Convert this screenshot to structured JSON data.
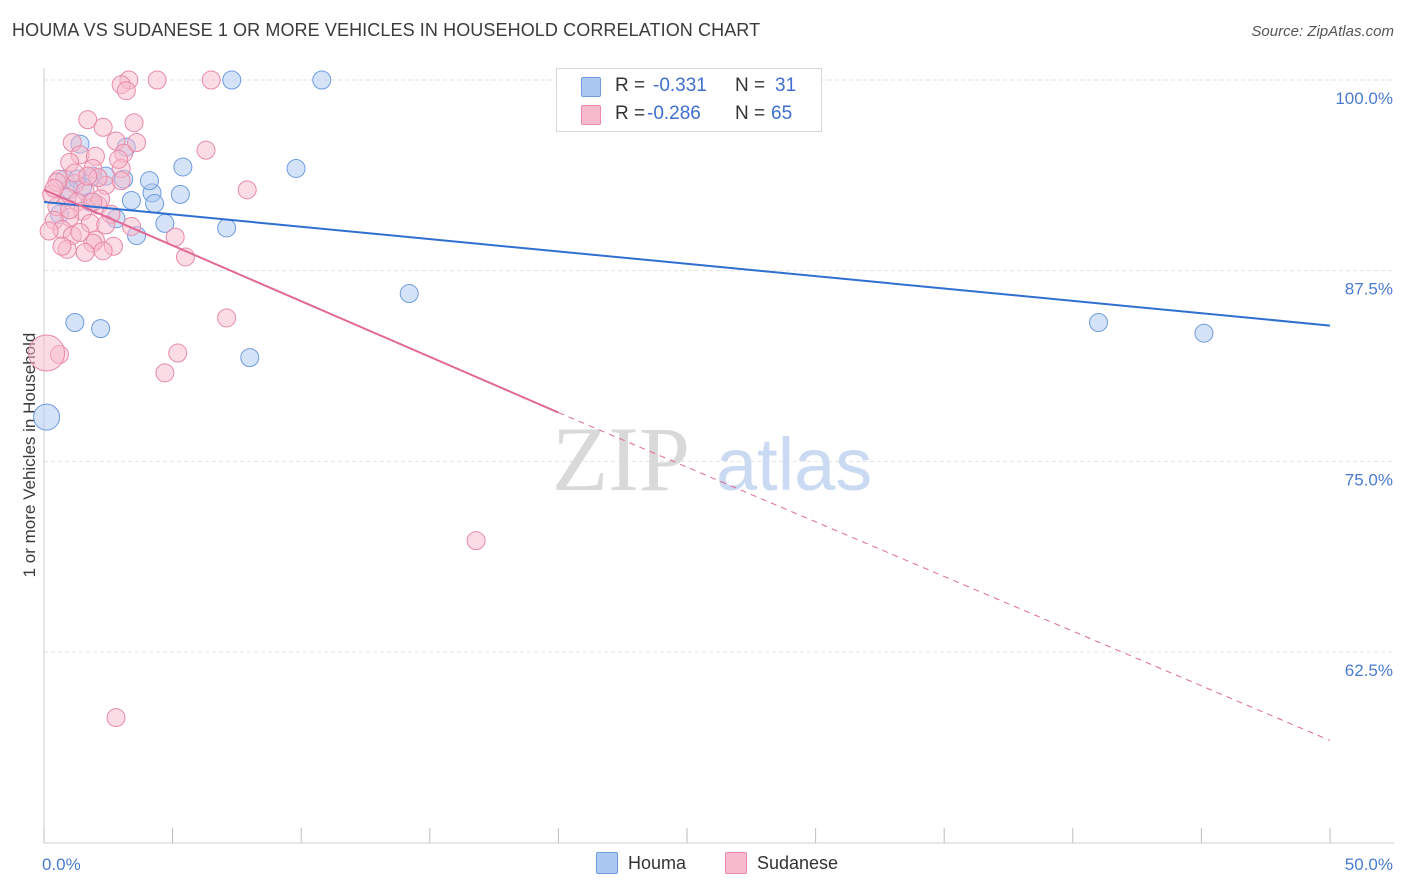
{
  "header": {
    "title": "HOUMA VS SUDANESE 1 OR MORE VEHICLES IN HOUSEHOLD CORRELATION CHART",
    "source_label": "Source:",
    "source_value": "ZipAtlas.com"
  },
  "legend": {
    "houma": {
      "r_label": "R =",
      "r_value": "-0.331",
      "n_label": "N =",
      "n_value": "31"
    },
    "sudanese": {
      "r_label": "R =",
      "r_value": "-0.286",
      "n_label": "N =",
      "n_value": "65"
    }
  },
  "bottom_legend": {
    "houma_label": "Houma",
    "sudanese_label": "Sudanese"
  },
  "watermark": {
    "zip": "ZIP",
    "atlas": "atlas"
  },
  "colors": {
    "houma_fill": "#aac8f0",
    "houma_stroke": "#6f9be0",
    "houma_line": "#2f6fcf",
    "sudanese_fill": "#f7b9cc",
    "sudanese_stroke": "#e88aa8",
    "sudanese_line": "#e06a95",
    "grid": "#e3e3e3",
    "axis_label": "#4a7bd0"
  },
  "chart_data": {
    "type": "scatter",
    "title": "HOUMA VS SUDANESE 1 OR MORE VEHICLES IN HOUSEHOLD CORRELATION CHART",
    "xlabel": "",
    "ylabel": "1 or more Vehicles in Household",
    "xlim": [
      0,
      50
    ],
    "ylim": [
      50,
      100
    ],
    "x_tick_labels": [
      "0.0%",
      "50.0%"
    ],
    "y_ticks": [
      {
        "value": 100,
        "label": "100.0%"
      },
      {
        "value": 87.5,
        "label": "87.5%"
      },
      {
        "value": 75,
        "label": "75.0%"
      },
      {
        "value": 62.5,
        "label": "62.5%"
      }
    ],
    "series": [
      {
        "name": "Houma",
        "points": [
          [
            7.3,
            100.0
          ],
          [
            10.8,
            100.0
          ],
          [
            1.4,
            95.8
          ],
          [
            3.2,
            95.6
          ],
          [
            5.4,
            94.3
          ],
          [
            9.8,
            94.2
          ],
          [
            0.8,
            93.5
          ],
          [
            1.3,
            93.5
          ],
          [
            1.9,
            93.7
          ],
          [
            3.1,
            93.5
          ],
          [
            1.5,
            93.0
          ],
          [
            4.2,
            92.6
          ],
          [
            5.3,
            92.5
          ],
          [
            3.4,
            92.1
          ],
          [
            4.3,
            91.9
          ],
          [
            1.8,
            92.0
          ],
          [
            2.8,
            90.9
          ],
          [
            4.7,
            90.6
          ],
          [
            7.1,
            90.3
          ],
          [
            3.6,
            89.8
          ],
          [
            14.2,
            86.0
          ],
          [
            1.2,
            84.1
          ],
          [
            2.2,
            83.7
          ],
          [
            8.0,
            81.8
          ],
          [
            41.0,
            84.1
          ],
          [
            45.1,
            83.4
          ],
          [
            0.1,
            77.9
          ],
          [
            2.4,
            93.7
          ],
          [
            0.6,
            91.2
          ],
          [
            1.0,
            92.8
          ],
          [
            4.1,
            93.4
          ]
        ],
        "sizes": [
          9,
          9,
          9,
          9,
          9,
          9,
          9,
          9,
          9,
          9,
          9,
          9,
          9,
          9,
          9,
          9,
          9,
          9,
          9,
          9,
          9,
          9,
          9,
          9,
          9,
          9,
          13,
          9,
          9,
          9,
          9
        ],
        "trend": {
          "x": [
            0,
            50
          ],
          "y": [
            92.0,
            83.9
          ]
        }
      },
      {
        "name": "Sudanese",
        "points": [
          [
            3.3,
            100.0
          ],
          [
            4.4,
            100.0
          ],
          [
            6.5,
            100.0
          ],
          [
            3.0,
            99.7
          ],
          [
            3.2,
            99.3
          ],
          [
            1.7,
            97.4
          ],
          [
            3.5,
            97.2
          ],
          [
            2.3,
            96.9
          ],
          [
            1.1,
            95.9
          ],
          [
            2.8,
            96.0
          ],
          [
            6.3,
            95.4
          ],
          [
            1.4,
            95.1
          ],
          [
            2.0,
            95.0
          ],
          [
            3.1,
            95.2
          ],
          [
            1.0,
            94.6
          ],
          [
            1.9,
            94.2
          ],
          [
            3.0,
            94.2
          ],
          [
            0.6,
            93.5
          ],
          [
            1.2,
            93.2
          ],
          [
            2.4,
            93.1
          ],
          [
            1.6,
            92.7
          ],
          [
            0.9,
            92.3
          ],
          [
            1.3,
            92.0
          ],
          [
            2.1,
            91.8
          ],
          [
            0.5,
            91.7
          ],
          [
            1.5,
            91.4
          ],
          [
            2.6,
            91.2
          ],
          [
            1.0,
            91.0
          ],
          [
            0.4,
            90.8
          ],
          [
            1.8,
            90.6
          ],
          [
            2.4,
            90.5
          ],
          [
            0.7,
            90.2
          ],
          [
            1.1,
            89.8
          ],
          [
            2.0,
            89.5
          ],
          [
            3.4,
            90.4
          ],
          [
            5.1,
            89.7
          ],
          [
            1.9,
            89.3
          ],
          [
            2.7,
            89.1
          ],
          [
            0.9,
            88.9
          ],
          [
            1.6,
            88.7
          ],
          [
            2.3,
            88.8
          ],
          [
            5.5,
            88.4
          ],
          [
            0.3,
            92.5
          ],
          [
            1.2,
            93.9
          ],
          [
            2.1,
            93.6
          ],
          [
            0.7,
            89.1
          ],
          [
            1.4,
            90.0
          ],
          [
            0.2,
            90.1
          ],
          [
            2.9,
            94.8
          ],
          [
            3.6,
            95.9
          ],
          [
            7.9,
            92.8
          ],
          [
            1.0,
            91.5
          ],
          [
            2.2,
            92.2
          ],
          [
            0.5,
            93.3
          ],
          [
            1.7,
            93.7
          ],
          [
            7.1,
            84.4
          ],
          [
            5.2,
            82.1
          ],
          [
            4.7,
            80.8
          ],
          [
            0.6,
            82.0
          ],
          [
            0.1,
            82.1
          ],
          [
            16.8,
            69.8
          ],
          [
            2.8,
            58.2
          ],
          [
            3.0,
            93.4
          ],
          [
            0.4,
            92.9
          ],
          [
            1.9,
            92.0
          ]
        ],
        "sizes": [
          9,
          9,
          9,
          9,
          9,
          9,
          9,
          9,
          9,
          9,
          9,
          9,
          9,
          9,
          9,
          9,
          9,
          9,
          9,
          9,
          9,
          9,
          9,
          9,
          9,
          9,
          9,
          9,
          9,
          9,
          9,
          9,
          9,
          9,
          9,
          9,
          9,
          9,
          9,
          9,
          9,
          9,
          9,
          9,
          9,
          9,
          9,
          9,
          9,
          9,
          9,
          9,
          9,
          9,
          9,
          9,
          9,
          9,
          9,
          18,
          9,
          9,
          9,
          9,
          9
        ],
        "trend": {
          "x": [
            0,
            20
          ],
          "y": [
            92.8,
            78.2
          ]
        },
        "trend_dashed": {
          "x": [
            20,
            50
          ],
          "y": [
            78.2,
            56.7
          ]
        }
      }
    ]
  }
}
